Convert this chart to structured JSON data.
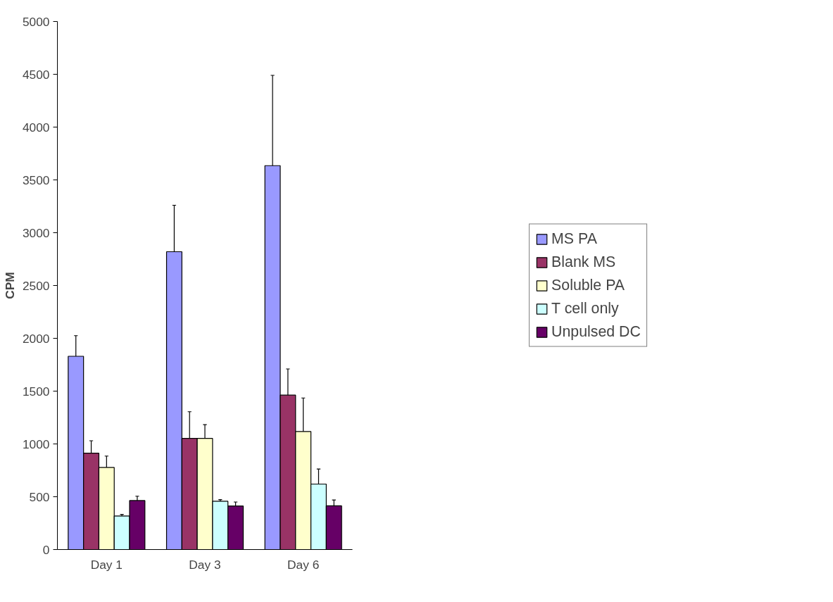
{
  "chart_data": {
    "type": "bar",
    "ylabel": "CPM",
    "categories": [
      "Day 1",
      "Day 3",
      "Day 6"
    ],
    "ylim": [
      0,
      5000
    ],
    "yticks": [
      0,
      500,
      1000,
      1500,
      2000,
      2500,
      3000,
      3500,
      4000,
      4500,
      5000
    ],
    "grid": false,
    "legend": "right",
    "series": [
      {
        "name": "MS PA",
        "color": "#9999ff",
        "values": [
          1830,
          2820,
          3635
        ],
        "errors": [
          [
            1830,
            2025
          ],
          [
            2820,
            3260
          ],
          [
            3635,
            4490
          ]
        ]
      },
      {
        "name": "Blank MS",
        "color": "#993366",
        "values": [
          912,
          1052,
          1462
        ],
        "errors": [
          [
            912,
            1030
          ],
          [
            1052,
            1305
          ],
          [
            1462,
            1710
          ]
        ]
      },
      {
        "name": "Soluble PA",
        "color": "#ffffcc",
        "values": [
          777,
          1052,
          1118
        ],
        "errors": [
          [
            777,
            885
          ],
          [
            1052,
            1182
          ],
          [
            1118,
            1435
          ]
        ]
      },
      {
        "name": "T cell only",
        "color": "#ccffff",
        "values": [
          318,
          457,
          620
        ],
        "errors": [
          [
            318,
            333
          ],
          [
            457,
            473
          ],
          [
            620,
            762
          ]
        ]
      },
      {
        "name": "Unpulsed DC",
        "color": "#660066",
        "values": [
          464,
          412,
          414
        ],
        "errors": [
          [
            464,
            505
          ],
          [
            412,
            450
          ],
          [
            414,
            469
          ]
        ]
      }
    ]
  }
}
